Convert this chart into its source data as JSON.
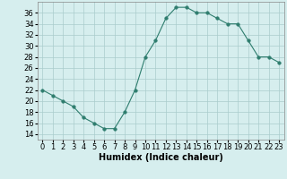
{
  "xlabel": "Humidex (Indice chaleur)",
  "x": [
    0,
    1,
    2,
    3,
    4,
    5,
    6,
    7,
    8,
    9,
    10,
    11,
    12,
    13,
    14,
    15,
    16,
    17,
    18,
    19,
    20,
    21,
    22,
    23
  ],
  "y": [
    22,
    21,
    20,
    19,
    17,
    16,
    15,
    15,
    18,
    22,
    28,
    31,
    35,
    37,
    37,
    36,
    36,
    35,
    34,
    34,
    31,
    28,
    28,
    27
  ],
  "line_color": "#2e7d6e",
  "marker_size": 2.5,
  "bg_color": "#d6eeee",
  "grid_color": "#aacccc",
  "xlim": [
    -0.5,
    23.5
  ],
  "ylim": [
    13,
    38
  ],
  "yticks": [
    14,
    16,
    18,
    20,
    22,
    24,
    26,
    28,
    30,
    32,
    34,
    36
  ],
  "xticks": [
    0,
    1,
    2,
    3,
    4,
    5,
    6,
    7,
    8,
    9,
    10,
    11,
    12,
    13,
    14,
    15,
    16,
    17,
    18,
    19,
    20,
    21,
    22,
    23
  ],
  "tick_fontsize": 6,
  "xlabel_fontsize": 7
}
